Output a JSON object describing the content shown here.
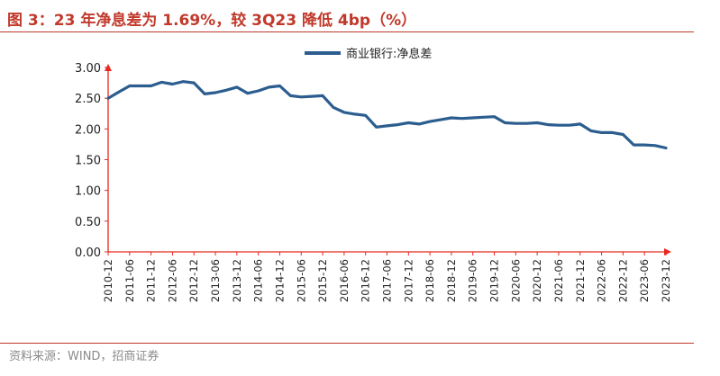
{
  "header": {
    "title": "图 3：23 年净息差为 1.69%，较 3Q23 降低 4bp（%）"
  },
  "footer": {
    "source": "资料来源：WIND，招商证券"
  },
  "colors": {
    "accent": "#c0392b",
    "axis": "#e8271e",
    "series": "#2b5d8f"
  },
  "chart_data": {
    "type": "line",
    "title": "",
    "xlabel": "",
    "ylabel": "",
    "ylim": [
      0,
      3
    ],
    "yticks": [
      "0.00",
      "0.50",
      "1.00",
      "1.50",
      "2.00",
      "2.50",
      "3.00"
    ],
    "grid": false,
    "legend_position": "top-center",
    "x": [
      "2010-12",
      "2011-03",
      "2011-06",
      "2011-09",
      "2011-12",
      "2012-03",
      "2012-06",
      "2012-09",
      "2012-12",
      "2013-03",
      "2013-06",
      "2013-09",
      "2013-12",
      "2014-03",
      "2014-06",
      "2014-09",
      "2014-12",
      "2015-03",
      "2015-06",
      "2015-09",
      "2015-12",
      "2016-03",
      "2016-06",
      "2016-09",
      "2016-12",
      "2017-03",
      "2017-06",
      "2017-09",
      "2017-12",
      "2018-03",
      "2018-06",
      "2018-09",
      "2018-12",
      "2019-03",
      "2019-06",
      "2019-09",
      "2019-12",
      "2020-03",
      "2020-06",
      "2020-09",
      "2020-12",
      "2021-03",
      "2021-06",
      "2021-09",
      "2021-12",
      "2022-03",
      "2022-06",
      "2022-09",
      "2022-12",
      "2023-03",
      "2023-06",
      "2023-09",
      "2023-12"
    ],
    "xtick_labels": [
      "2010-12",
      "2011-06",
      "2011-12",
      "2012-06",
      "2012-12",
      "2013-06",
      "2013-12",
      "2014-06",
      "2014-12",
      "2015-06",
      "2015-12",
      "2016-06",
      "2016-12",
      "2017-06",
      "2017-12",
      "2018-06",
      "2018-12",
      "2019-06",
      "2019-12",
      "2020-06",
      "2020-12",
      "2021-06",
      "2021-12",
      "2022-06",
      "2022-12",
      "2023-06",
      "2023-12"
    ],
    "series": [
      {
        "name": "商业银行:净息差",
        "values": [
          2.5,
          2.6,
          2.7,
          2.7,
          2.7,
          2.76,
          2.73,
          2.77,
          2.75,
          2.57,
          2.59,
          2.63,
          2.68,
          2.58,
          2.62,
          2.68,
          2.7,
          2.54,
          2.52,
          2.53,
          2.54,
          2.35,
          2.27,
          2.24,
          2.22,
          2.03,
          2.05,
          2.07,
          2.1,
          2.08,
          2.12,
          2.15,
          2.18,
          2.17,
          2.18,
          2.19,
          2.2,
          2.1,
          2.09,
          2.09,
          2.1,
          2.07,
          2.06,
          2.06,
          2.08,
          1.97,
          1.94,
          1.94,
          1.91,
          1.74,
          1.74,
          1.73,
          1.69
        ]
      }
    ]
  }
}
